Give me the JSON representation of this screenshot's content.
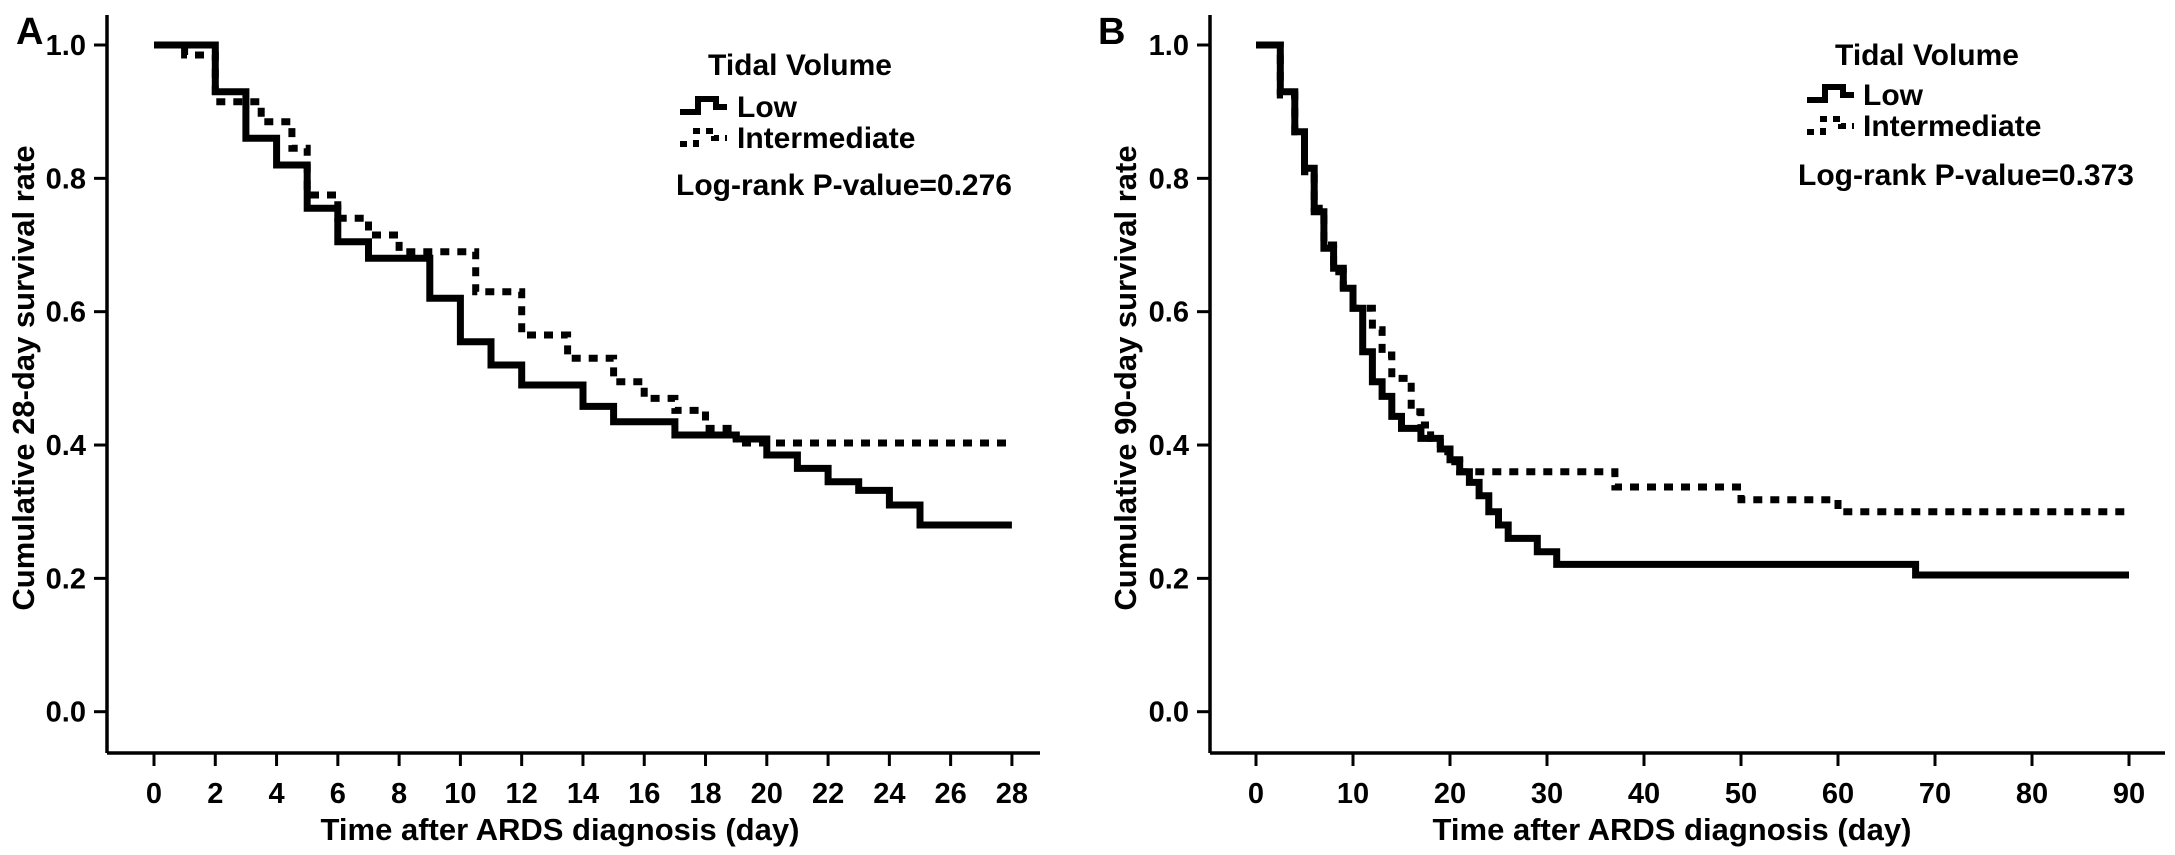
{
  "figure": {
    "background": "#ffffff",
    "ink": "#000000"
  },
  "chart_data": [
    {
      "type": "line",
      "subtype": "kaplan-meier-step",
      "panel_label": "A",
      "xlabel": "Time after ARDS diagnosis (day)",
      "ylabel": "Cumulative 28-day survival rate",
      "xlim": [
        0,
        28
      ],
      "ylim": [
        0.0,
        1.0
      ],
      "x_ticks": [
        0,
        2,
        4,
        6,
        8,
        10,
        12,
        14,
        16,
        18,
        20,
        22,
        24,
        26,
        28
      ],
      "y_ticks": [
        1.0,
        0.8,
        0.6,
        0.4,
        0.2,
        0.0
      ],
      "grid": false,
      "legend": {
        "title": "Tidal Volume",
        "position": "top-right",
        "entries": [
          {
            "label": "Low",
            "style": "solid"
          },
          {
            "label": "Intermediate",
            "style": "dashed"
          }
        ]
      },
      "annotation": "Log-rank P-value=0.276",
      "series": [
        {
          "name": "Low",
          "style": "solid",
          "steps": [
            [
              0,
              1.0
            ],
            [
              2,
              0.93
            ],
            [
              3,
              0.86
            ],
            [
              4,
              0.82
            ],
            [
              5,
              0.755
            ],
            [
              6,
              0.705
            ],
            [
              7,
              0.68
            ],
            [
              9,
              0.62
            ],
            [
              10,
              0.555
            ],
            [
              11,
              0.52
            ],
            [
              12,
              0.49
            ],
            [
              14,
              0.458
            ],
            [
              15,
              0.435
            ],
            [
              17,
              0.415
            ],
            [
              19,
              0.409
            ],
            [
              20,
              0.385
            ],
            [
              21,
              0.365
            ],
            [
              22,
              0.345
            ],
            [
              23,
              0.332
            ],
            [
              24,
              0.31
            ],
            [
              25,
              0.28
            ],
            [
              28,
              0.28
            ]
          ]
        },
        {
          "name": "Intermediate",
          "style": "dashed",
          "steps": [
            [
              0,
              1.0
            ],
            [
              1,
              0.985
            ],
            [
              2,
              0.915
            ],
            [
              3.5,
              0.885
            ],
            [
              4.5,
              0.845
            ],
            [
              5,
              0.775
            ],
            [
              6,
              0.74
            ],
            [
              7,
              0.715
            ],
            [
              8,
              0.69
            ],
            [
              10.5,
              0.63
            ],
            [
              12,
              0.565
            ],
            [
              13.5,
              0.53
            ],
            [
              15,
              0.495
            ],
            [
              16,
              0.47
            ],
            [
              17,
              0.452
            ],
            [
              18,
              0.425
            ],
            [
              19,
              0.403
            ],
            [
              28,
              0.403
            ]
          ]
        }
      ]
    },
    {
      "type": "line",
      "subtype": "kaplan-meier-step",
      "panel_label": "B",
      "xlabel": "Time after ARDS diagnosis (day)",
      "ylabel": "Cumulative 90-day survival rate",
      "xlim": [
        0,
        90
      ],
      "ylim": [
        0.0,
        1.0
      ],
      "x_ticks": [
        0,
        10,
        20,
        30,
        40,
        50,
        60,
        70,
        80,
        90
      ],
      "y_ticks": [
        1.0,
        0.8,
        0.6,
        0.4,
        0.2,
        0.0
      ],
      "grid": false,
      "legend": {
        "title": "Tidal Volume",
        "position": "top-right",
        "entries": [
          {
            "label": "Low",
            "style": "solid"
          },
          {
            "label": "Intermediate",
            "style": "dashed"
          }
        ]
      },
      "annotation": "Log-rank P-value=0.373",
      "series": [
        {
          "name": "Low",
          "style": "solid",
          "steps": [
            [
              0,
              1.0
            ],
            [
              2.5,
              0.93
            ],
            [
              4,
              0.87
            ],
            [
              5,
              0.815
            ],
            [
              6,
              0.75
            ],
            [
              7,
              0.695
            ],
            [
              8,
              0.665
            ],
            [
              9,
              0.635
            ],
            [
              10,
              0.605
            ],
            [
              11,
              0.54
            ],
            [
              12,
              0.495
            ],
            [
              13,
              0.473
            ],
            [
              14,
              0.443
            ],
            [
              15,
              0.425
            ],
            [
              17,
              0.41
            ],
            [
              19,
              0.394
            ],
            [
              20,
              0.378
            ],
            [
              21,
              0.36
            ],
            [
              22,
              0.344
            ],
            [
              23,
              0.324
            ],
            [
              24,
              0.3
            ],
            [
              25,
              0.28
            ],
            [
              26,
              0.26
            ],
            [
              29,
              0.24
            ],
            [
              31,
              0.221
            ],
            [
              68,
              0.205
            ],
            [
              90,
              0.205
            ]
          ]
        },
        {
          "name": "Intermediate",
          "style": "dashed",
          "steps": [
            [
              0,
              1.0
            ],
            [
              2.5,
              0.925
            ],
            [
              4,
              0.87
            ],
            [
              5,
              0.81
            ],
            [
              6,
              0.755
            ],
            [
              7,
              0.7
            ],
            [
              8,
              0.66
            ],
            [
              9,
              0.632
            ],
            [
              10,
              0.605
            ],
            [
              12,
              0.573
            ],
            [
              13,
              0.535
            ],
            [
              14,
              0.5
            ],
            [
              16,
              0.45
            ],
            [
              17,
              0.43
            ],
            [
              18,
              0.41
            ],
            [
              19,
              0.39
            ],
            [
              20,
              0.375
            ],
            [
              21,
              0.36
            ],
            [
              37,
              0.337
            ],
            [
              50,
              0.318
            ],
            [
              60,
              0.3
            ],
            [
              90,
              0.3
            ]
          ]
        }
      ]
    }
  ]
}
